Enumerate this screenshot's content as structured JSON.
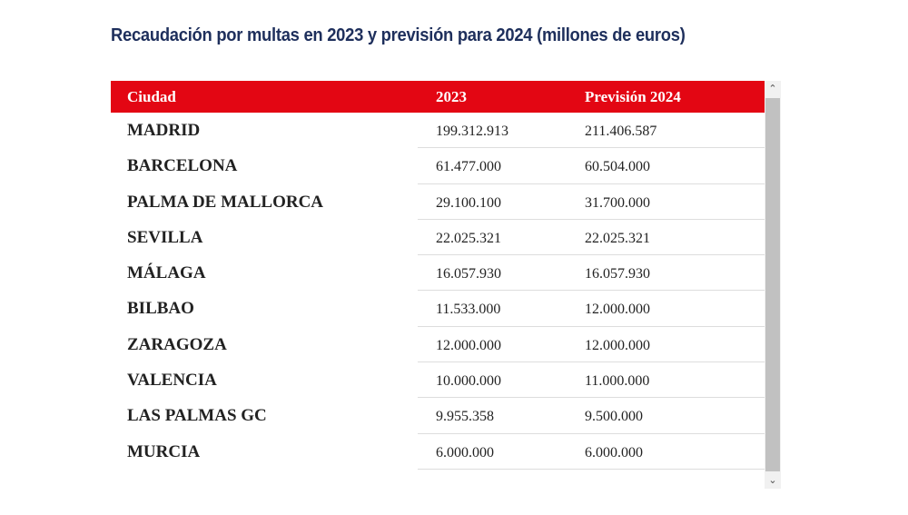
{
  "title": "Recaudación por multas en 2023 y previsión para 2024 (millones de euros)",
  "table": {
    "headers": {
      "city": "Ciudad",
      "y2023": "2023",
      "y2024": "Previsión 2024"
    },
    "rows": [
      {
        "city": "MADRID",
        "v2023": "199.312.913",
        "v2024": "211.406.587"
      },
      {
        "city": "BARCELONA",
        "v2023": "61.477.000",
        "v2024": "60.504.000"
      },
      {
        "city": "PALMA DE MALLORCA",
        "v2023": "29.100.100",
        "v2024": "31.700.000"
      },
      {
        "city": "SEVILLA",
        "v2023": "22.025.321",
        "v2024": "22.025.321"
      },
      {
        "city": "MÁLAGA",
        "v2023": "16.057.930",
        "v2024": "16.057.930"
      },
      {
        "city": "BILBAO",
        "v2023": "11.533.000",
        "v2024": "12.000.000"
      },
      {
        "city": "ZARAGOZA",
        "v2023": "12.000.000",
        "v2024": "12.000.000"
      },
      {
        "city": "VALENCIA",
        "v2023": "10.000.000",
        "v2024": "11.000.000"
      },
      {
        "city": "LAS PALMAS GC",
        "v2023": "9.955.358",
        "v2024": "9.500.000"
      },
      {
        "city": "MURCIA",
        "v2023": "6.000.000",
        "v2024": "6.000.000"
      }
    ]
  },
  "scrollbar": {
    "up_icon": "chevron-up-icon",
    "down_icon": "chevron-down-icon",
    "up_glyph": "⌃",
    "down_glyph": "⌄"
  },
  "colors": {
    "title": "#1e2f5c",
    "header_bg": "#e30613",
    "header_text": "#ffffff",
    "body_text": "#222222"
  }
}
